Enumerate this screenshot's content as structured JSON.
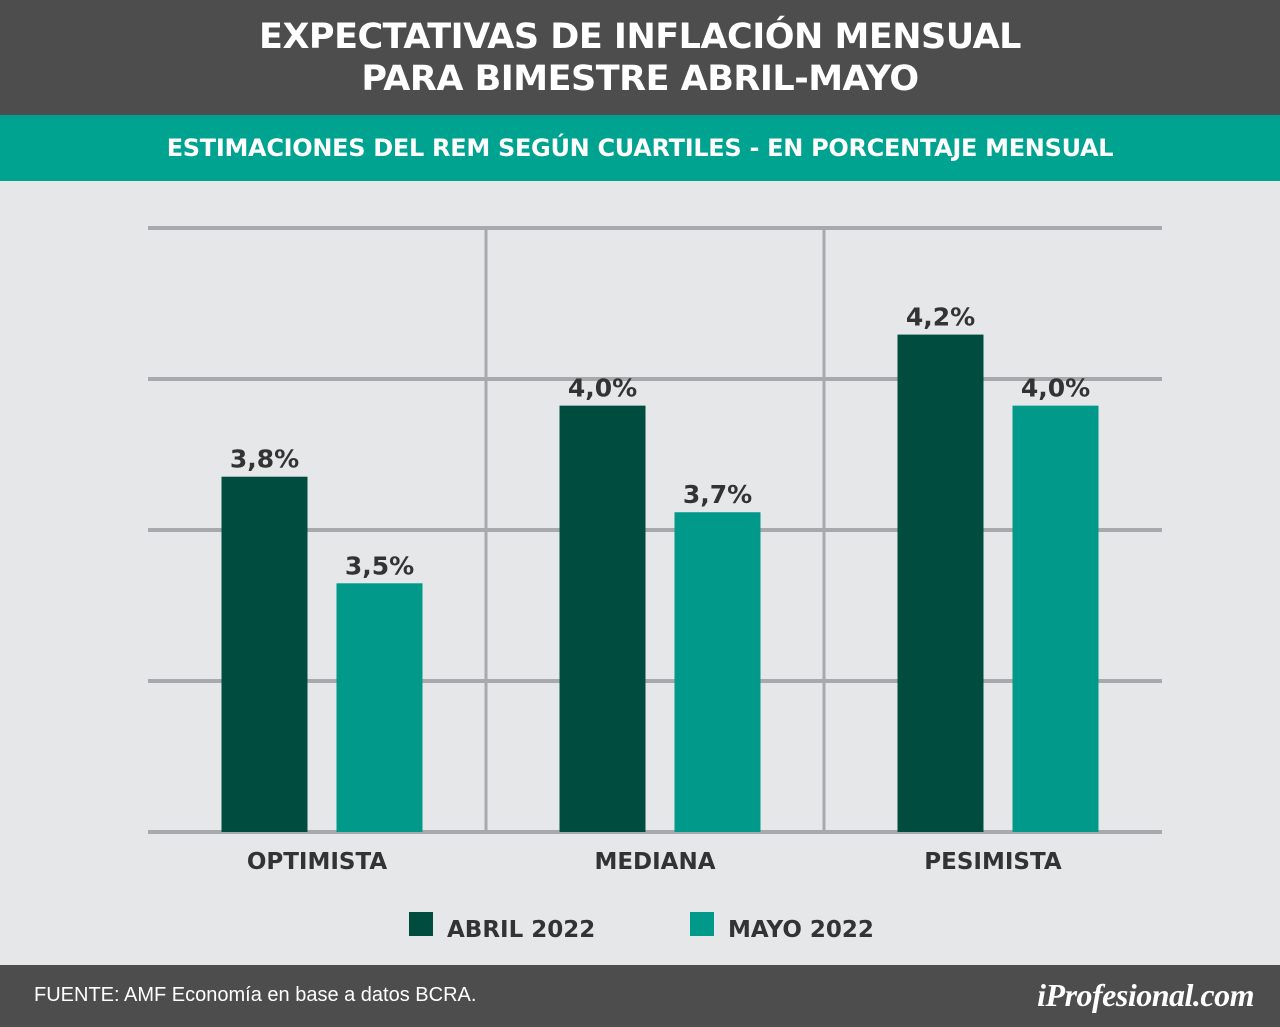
{
  "header": {
    "title_line1": "EXPECTATIVAS DE INFLACIÓN MENSUAL",
    "title_line2": "PARA BIMESTRE ABRIL-MAYO"
  },
  "subheader": {
    "subtitle": "ESTIMACIONES DEL REM SEGÚN CUARTILES - EN PORCENTAJE MENSUAL"
  },
  "footer": {
    "source": "FUENTE: AMF Economía en base a datos BCRA.",
    "brand": "iProfesional.com"
  },
  "colors": {
    "abril": "#004d40",
    "mayo": "#00998a",
    "grid": "#a7a9ac",
    "label": "#333333"
  },
  "chart_data": {
    "type": "bar",
    "categories": [
      "OPTIMISTA",
      "MEDIANA",
      "PESIMISTA"
    ],
    "series": [
      {
        "name": "ABRIL 2022",
        "values": [
          3.8,
          4.0,
          4.2
        ],
        "labels": [
          "3,8%",
          "4,0%",
          "4,2%"
        ]
      },
      {
        "name": "MAYO 2022",
        "values": [
          3.5,
          3.7,
          4.0
        ],
        "labels": [
          "3,5%",
          "3,7%",
          "4,0%"
        ]
      }
    ],
    "title": "EXPECTATIVAS DE INFLACIÓN MENSUAL PARA BIMESTRE ABRIL-MAYO",
    "subtitle": "ESTIMACIONES DEL REM SEGÚN CUARTILES - EN PORCENTAJE MENSUAL",
    "ylim": [
      2.8,
      4.5
    ],
    "grid": true,
    "legend": "bottom-center"
  }
}
